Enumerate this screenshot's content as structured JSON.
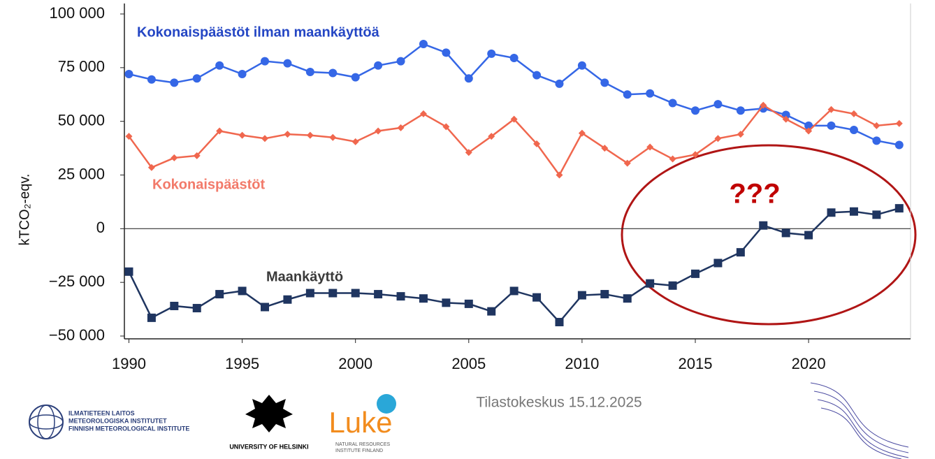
{
  "chart_data": {
    "type": "line",
    "ylabel": "kTCO₂-eqv.",
    "x": [
      1990,
      1991,
      1992,
      1993,
      1994,
      1995,
      1996,
      1997,
      1998,
      1999,
      2000,
      2001,
      2002,
      2003,
      2004,
      2005,
      2006,
      2007,
      2008,
      2009,
      2010,
      2011,
      2012,
      2013,
      2014,
      2015,
      2016,
      2017,
      2018,
      2019,
      2020,
      2021,
      2022,
      2023,
      2024
    ],
    "series": [
      {
        "name": "Kokonaispäästöt ilman maankäyttöä",
        "color": "#3567e6",
        "label_color": "#2446c4",
        "marker": "circle",
        "values": [
          72000,
          69500,
          68000,
          70000,
          76000,
          72000,
          78000,
          77000,
          73000,
          72500,
          70500,
          76000,
          78000,
          86000,
          82000,
          70000,
          81500,
          79500,
          71500,
          67500,
          76000,
          68000,
          62500,
          63000,
          58500,
          55000,
          58000,
          55000,
          56000,
          53000,
          48000,
          48000,
          46000,
          41000,
          39000
        ]
      },
      {
        "name": "Kokonaispäästöt",
        "color": "#f0674e",
        "label_color": "#f27a6a",
        "marker": "diamond",
        "values": [
          43000,
          28500,
          33000,
          34000,
          45500,
          43500,
          42000,
          44000,
          43500,
          42500,
          40500,
          45500,
          47000,
          53500,
          47500,
          35500,
          43000,
          51000,
          39500,
          25000,
          44500,
          37500,
          30500,
          38000,
          32500,
          34500,
          42000,
          44000,
          57500,
          51000,
          45500,
          55500,
          53500,
          48000,
          49000
        ]
      },
      {
        "name": "Maankäyttö",
        "color": "#1f3560",
        "label_color": "#3a3a3a",
        "marker": "square",
        "values": [
          -20000,
          -41500,
          -36000,
          -37000,
          -30500,
          -29000,
          -36500,
          -33000,
          -30000,
          -30000,
          -30000,
          -30500,
          -31500,
          -32500,
          -34500,
          -35000,
          -38500,
          -29000,
          -32000,
          -43500,
          -31000,
          -30500,
          -32500,
          -25500,
          -26500,
          -21000,
          -16000,
          -11000,
          1500,
          -2000,
          -3000,
          7500,
          8000,
          6500,
          9500
        ]
      }
    ],
    "xlim": [
      1989.8,
      2024.5
    ],
    "xticks": [
      1990,
      1995,
      2000,
      2005,
      2010,
      2015,
      2020
    ],
    "ylim": [
      -50000,
      100000
    ],
    "yticks": [
      {
        "value": -50000,
        "label": "−50 000"
      },
      {
        "value": -25000,
        "label": "−25 000"
      },
      0,
      {
        "value": 25000,
        "label": "25 000"
      },
      {
        "value": 50000,
        "label": "50 000"
      },
      {
        "value": 75000,
        "label": "75 000"
      },
      {
        "value": 100000,
        "label": "100 000"
      }
    ],
    "annotation": "???"
  },
  "footer": {
    "source": "Tilastokeskus 15.12.2025",
    "fmi": [
      "ILMATIETEEN LAITOS",
      "METEOROLOGISKA INSTITUTET",
      "FINNISH METEOROLOGICAL INSTITUTE"
    ],
    "uh": "UNIVERSITY OF HELSINKI",
    "luke": "Luke",
    "luke_sub": [
      "NATURAL RESOURCES",
      "INSTITUTE FINLAND"
    ]
  }
}
